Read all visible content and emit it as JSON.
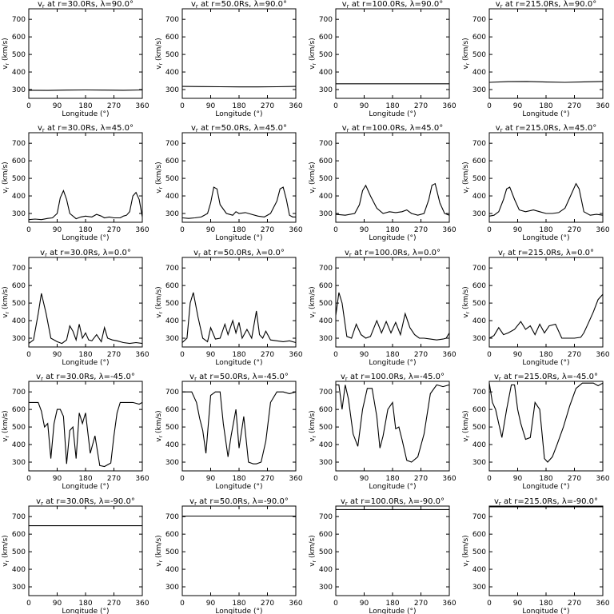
{
  "figure": {
    "xlabel": "Longitude (°)",
    "ylabel": "vr (km/s)",
    "xticks": [
      0,
      90,
      180,
      270,
      360
    ],
    "yticks": [
      300,
      400,
      500,
      600,
      700
    ],
    "xlim": [
      0,
      360
    ],
    "ylim": [
      250,
      760
    ]
  },
  "chart_data": [
    {
      "type": "line",
      "title": "vr at r=30.0Rs, λ=90.0°",
      "radius": "30.0Rs",
      "latitude": "90.0°",
      "xlabel": "Longitude (°)",
      "ylabel": "vr (km/s)",
      "xlim": [
        0,
        360
      ],
      "ylim": [
        250,
        760
      ],
      "x": [
        0,
        60,
        120,
        180,
        240,
        300,
        360
      ],
      "y": [
        296,
        295,
        297,
        298,
        297,
        296,
        298
      ]
    },
    {
      "type": "line",
      "title": "vr at r=50.0Rs, λ=90.0°",
      "radius": "50.0Rs",
      "latitude": "90.0°",
      "xlabel": "Longitude (°)",
      "ylabel": "vr (km/s)",
      "xlim": [
        0,
        360
      ],
      "ylim": [
        250,
        760
      ],
      "x": [
        0,
        60,
        120,
        180,
        240,
        300,
        360
      ],
      "y": [
        318,
        317,
        316,
        315,
        315,
        316,
        318
      ]
    },
    {
      "type": "line",
      "title": "vr at r=100.0Rs, λ=90.0°",
      "radius": "100.0Rs",
      "latitude": "90.0°",
      "xlabel": "Longitude (°)",
      "ylabel": "vr (km/s)",
      "xlim": [
        0,
        360
      ],
      "ylim": [
        250,
        760
      ],
      "x": [
        0,
        90,
        180,
        270,
        360
      ],
      "y": [
        333,
        333,
        333,
        333,
        333
      ]
    },
    {
      "type": "line",
      "title": "vr at r=215.0Rs, λ=90.0°",
      "radius": "215.0Rs",
      "latitude": "90.0°",
      "xlabel": "Longitude (°)",
      "ylabel": "vr (km/s)",
      "xlim": [
        0,
        360
      ],
      "ylim": [
        250,
        760
      ],
      "x": [
        0,
        60,
        120,
        180,
        240,
        300,
        360
      ],
      "y": [
        341,
        345,
        346,
        343,
        341,
        344,
        346
      ]
    },
    {
      "type": "line",
      "title": "vr at r=30.0Rs, λ=45.0°",
      "radius": "30.0Rs",
      "latitude": "45.0°",
      "xlabel": "Longitude (°)",
      "ylabel": "vr (km/s)",
      "xlim": [
        0,
        360
      ],
      "ylim": [
        250,
        760
      ],
      "x": [
        0,
        20,
        40,
        60,
        75,
        90,
        100,
        110,
        120,
        130,
        150,
        165,
        180,
        200,
        215,
        230,
        240,
        255,
        270,
        290,
        300,
        310,
        320,
        330,
        340,
        350,
        360
      ],
      "y": [
        265,
        268,
        265,
        272,
        275,
        300,
        390,
        430,
        380,
        300,
        270,
        280,
        285,
        280,
        295,
        285,
        275,
        280,
        275,
        275,
        285,
        290,
        310,
        400,
        420,
        380,
        280
      ]
    },
    {
      "type": "line",
      "title": "vr at r=50.0Rs, λ=45.0°",
      "radius": "50.0Rs",
      "latitude": "45.0°",
      "xlabel": "Longitude (°)",
      "ylabel": "vr (km/s)",
      "xlim": [
        0,
        360
      ],
      "ylim": [
        250,
        760
      ],
      "x": [
        0,
        20,
        40,
        60,
        80,
        90,
        100,
        110,
        120,
        140,
        160,
        170,
        180,
        200,
        220,
        240,
        260,
        280,
        300,
        310,
        320,
        330,
        340,
        350,
        360
      ],
      "y": [
        275,
        272,
        275,
        280,
        300,
        360,
        450,
        440,
        350,
        300,
        290,
        310,
        300,
        305,
        295,
        285,
        280,
        300,
        370,
        440,
        450,
        380,
        290,
        280,
        280
      ]
    },
    {
      "type": "line",
      "title": "vr at r=100.0Rs, λ=45.0°",
      "radius": "100.0Rs",
      "latitude": "45.0°",
      "xlabel": "Longitude (°)",
      "ylabel": "vr (km/s)",
      "xlim": [
        0,
        360
      ],
      "ylim": [
        250,
        760
      ],
      "x": [
        0,
        30,
        60,
        75,
        85,
        95,
        110,
        130,
        150,
        170,
        190,
        210,
        225,
        240,
        260,
        280,
        295,
        305,
        315,
        330,
        345,
        360
      ],
      "y": [
        295,
        290,
        300,
        350,
        430,
        460,
        400,
        330,
        300,
        310,
        305,
        310,
        320,
        300,
        290,
        300,
        380,
        460,
        470,
        360,
        300,
        290
      ]
    },
    {
      "type": "line",
      "title": "vr at r=215.0Rs, λ=45.0°",
      "radius": "215.0Rs",
      "latitude": "45.0°",
      "xlabel": "Longitude (°)",
      "ylabel": "vr (km/s)",
      "xlim": [
        0,
        360
      ],
      "ylim": [
        250,
        760
      ],
      "x": [
        0,
        15,
        30,
        45,
        55,
        65,
        80,
        95,
        115,
        140,
        160,
        180,
        200,
        220,
        240,
        260,
        275,
        285,
        300,
        320,
        340,
        360
      ],
      "y": [
        285,
        290,
        310,
        380,
        440,
        450,
        380,
        320,
        310,
        320,
        310,
        300,
        300,
        305,
        330,
        410,
        470,
        440,
        310,
        290,
        295,
        290
      ]
    },
    {
      "type": "line",
      "title": "vr at r=30.0Rs, λ=0.0°",
      "radius": "30.0Rs",
      "latitude": "0.0°",
      "xlabel": "Longitude (°)",
      "ylabel": "vr (km/s)",
      "xlim": [
        0,
        360
      ],
      "ylim": [
        250,
        760
      ],
      "x": [
        0,
        15,
        30,
        40,
        55,
        70,
        90,
        105,
        120,
        130,
        140,
        150,
        160,
        170,
        180,
        190,
        200,
        215,
        230,
        240,
        250,
        265,
        280,
        300,
        320,
        340,
        360
      ],
      "y": [
        270,
        290,
        440,
        555,
        440,
        300,
        280,
        270,
        290,
        370,
        340,
        290,
        380,
        300,
        330,
        290,
        285,
        320,
        280,
        360,
        300,
        290,
        285,
        275,
        270,
        275,
        270
      ]
    },
    {
      "type": "line",
      "title": "vr at r=50.0Rs, λ=0.0°",
      "radius": "50.0Rs",
      "latitude": "0.0°",
      "xlabel": "Longitude (°)",
      "ylabel": "vr (km/s)",
      "xlim": [
        0,
        360
      ],
      "ylim": [
        250,
        760
      ],
      "x": [
        0,
        15,
        25,
        35,
        50,
        65,
        80,
        90,
        105,
        120,
        135,
        145,
        160,
        170,
        180,
        190,
        205,
        220,
        235,
        245,
        255,
        265,
        280,
        300,
        320,
        340,
        360
      ],
      "y": [
        275,
        300,
        500,
        560,
        420,
        300,
        280,
        360,
        295,
        300,
        380,
        320,
        400,
        330,
        390,
        300,
        350,
        300,
        455,
        320,
        300,
        340,
        290,
        285,
        280,
        285,
        275
      ]
    },
    {
      "type": "line",
      "title": "vr at r=100.0Rs, λ=0.0°",
      "radius": "100.0Rs",
      "latitude": "0.0°",
      "xlabel": "Longitude (°)",
      "ylabel": "vr (km/s)",
      "xlim": [
        0,
        360
      ],
      "ylim": [
        250,
        760
      ],
      "x": [
        0,
        10,
        20,
        35,
        50,
        65,
        80,
        95,
        110,
        130,
        145,
        160,
        175,
        190,
        205,
        220,
        235,
        250,
        265,
        280,
        300,
        320,
        340,
        350,
        360
      ],
      "y": [
        430,
        560,
        500,
        310,
        300,
        380,
        320,
        300,
        310,
        400,
        330,
        395,
        330,
        390,
        320,
        440,
        360,
        320,
        300,
        300,
        295,
        290,
        295,
        300,
        330
      ]
    },
    {
      "type": "line",
      "title": "vr at r=215.0Rs, λ=0.0°",
      "radius": "215.0Rs",
      "latitude": "0.0°",
      "xlabel": "Longitude (°)",
      "ylabel": "vr (km/s)",
      "xlim": [
        0,
        360
      ],
      "ylim": [
        250,
        760
      ],
      "x": [
        0,
        15,
        30,
        45,
        60,
        80,
        100,
        115,
        130,
        145,
        160,
        175,
        190,
        210,
        230,
        250,
        270,
        290,
        300,
        315,
        330,
        345,
        360
      ],
      "y": [
        300,
        315,
        360,
        320,
        330,
        350,
        395,
        350,
        370,
        320,
        380,
        330,
        370,
        380,
        300,
        300,
        300,
        305,
        330,
        390,
        450,
        520,
        550
      ]
    },
    {
      "type": "line",
      "title": "vr at r=30.0Rs, λ=-45.0°",
      "radius": "30.0Rs",
      "latitude": "-45.0°",
      "xlabel": "Longitude (°)",
      "ylabel": "vr (km/s)",
      "xlim": [
        0,
        360
      ],
      "ylim": [
        250,
        760
      ],
      "x": [
        0,
        15,
        30,
        40,
        50,
        60,
        70,
        80,
        90,
        100,
        110,
        120,
        130,
        140,
        150,
        160,
        170,
        180,
        195,
        210,
        225,
        240,
        260,
        270,
        280,
        290,
        310,
        330,
        350,
        360
      ],
      "y": [
        640,
        640,
        640,
        590,
        500,
        520,
        320,
        520,
        600,
        600,
        560,
        290,
        480,
        500,
        320,
        580,
        520,
        580,
        350,
        450,
        280,
        275,
        295,
        450,
        580,
        640,
        640,
        640,
        630,
        640
      ]
    },
    {
      "type": "line",
      "title": "vr at r=50.0Rs, λ=-45.0°",
      "radius": "50.0Rs",
      "latitude": "-45.0°",
      "xlabel": "Longitude (°)",
      "ylabel": "vr (km/s)",
      "xlim": [
        0,
        360
      ],
      "ylim": [
        250,
        760
      ],
      "x": [
        0,
        15,
        30,
        45,
        55,
        65,
        75,
        90,
        105,
        120,
        130,
        145,
        155,
        170,
        180,
        195,
        210,
        225,
        235,
        250,
        265,
        280,
        300,
        320,
        340,
        360
      ],
      "y": [
        700,
        700,
        700,
        640,
        550,
        480,
        350,
        680,
        700,
        700,
        520,
        330,
        450,
        600,
        380,
        560,
        300,
        290,
        290,
        300,
        420,
        640,
        700,
        700,
        690,
        700
      ]
    },
    {
      "type": "line",
      "title": "vr at r=100.0Rs, λ=-45.0°",
      "radius": "100.0Rs",
      "latitude": "-45.0°",
      "xlabel": "Longitude (°)",
      "ylabel": "vr (km/s)",
      "xlim": [
        0,
        360
      ],
      "ylim": [
        250,
        760
      ],
      "x": [
        0,
        10,
        20,
        30,
        40,
        55,
        70,
        85,
        100,
        115,
        130,
        140,
        150,
        165,
        180,
        190,
        200,
        210,
        225,
        240,
        260,
        280,
        300,
        320,
        340,
        360
      ],
      "y": [
        740,
        740,
        600,
        740,
        660,
        460,
        390,
        600,
        720,
        720,
        560,
        380,
        450,
        600,
        640,
        490,
        500,
        430,
        310,
        300,
        330,
        460,
        690,
        740,
        730,
        740
      ]
    },
    {
      "type": "line",
      "title": "vr at r=215.0Rs, λ=-45.0°",
      "radius": "215.0Rs",
      "latitude": "-45.0°",
      "xlabel": "Longitude (°)",
      "ylabel": "vr (km/s)",
      "xlim": [
        0,
        360
      ],
      "ylim": [
        250,
        760
      ],
      "x": [
        0,
        10,
        20,
        30,
        40,
        55,
        70,
        80,
        90,
        100,
        115,
        130,
        145,
        160,
        175,
        185,
        200,
        215,
        235,
        255,
        275,
        295,
        310,
        330,
        345,
        360
      ],
      "y": [
        750,
        640,
        600,
        520,
        440,
        600,
        740,
        740,
        600,
        520,
        430,
        440,
        640,
        600,
        320,
        300,
        330,
        400,
        500,
        620,
        720,
        750,
        750,
        750,
        735,
        750
      ]
    },
    {
      "type": "line",
      "title": "vr at r=30.0Rs, λ=-90.0°",
      "radius": "30.0Rs",
      "latitude": "-90.0°",
      "xlabel": "Longitude (°)",
      "ylabel": "vr (km/s)",
      "xlim": [
        0,
        360
      ],
      "ylim": [
        250,
        760
      ],
      "x": [
        0,
        90,
        180,
        270,
        360
      ],
      "y": [
        648,
        648,
        648,
        648,
        648
      ]
    },
    {
      "type": "line",
      "title": "vr at r=50.0Rs, λ=-90.0°",
      "radius": "50.0Rs",
      "latitude": "-90.0°",
      "xlabel": "Longitude (°)",
      "ylabel": "vr (km/s)",
      "xlim": [
        0,
        360
      ],
      "ylim": [
        250,
        760
      ],
      "x": [
        0,
        90,
        180,
        270,
        360
      ],
      "y": [
        703,
        703,
        703,
        703,
        703
      ]
    },
    {
      "type": "line",
      "title": "vr at r=100.0Rs, λ=-90.0°",
      "radius": "100.0Rs",
      "latitude": "-90.0°",
      "xlabel": "Longitude (°)",
      "ylabel": "vr (km/s)",
      "xlim": [
        0,
        360
      ],
      "ylim": [
        250,
        760
      ],
      "x": [
        0,
        90,
        180,
        270,
        360
      ],
      "y": [
        740,
        740,
        740,
        740,
        740
      ]
    },
    {
      "type": "line",
      "title": "vr at r=215.0Rs, λ=-90.0°",
      "radius": "215.0Rs",
      "latitude": "-90.0°",
      "xlabel": "Longitude (°)",
      "ylabel": "vr (km/s)",
      "xlim": [
        0,
        360
      ],
      "ylim": [
        250,
        760
      ],
      "x": [
        0,
        90,
        180,
        270,
        360
      ],
      "y": [
        756,
        756,
        756,
        756,
        756
      ]
    }
  ]
}
